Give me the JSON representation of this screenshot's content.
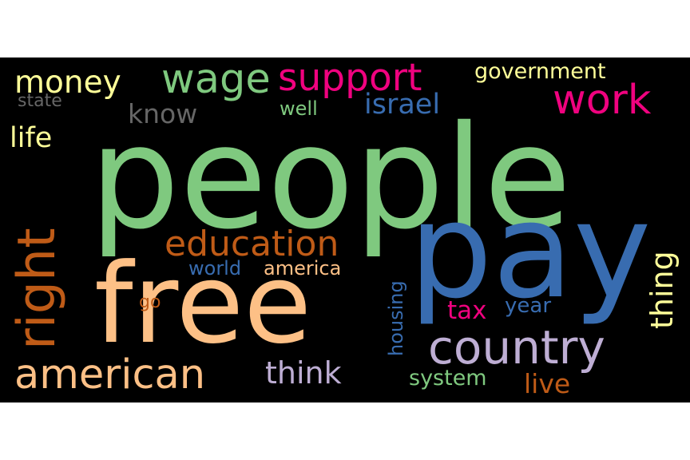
{
  "words": {
    "people": {
      "text": "people",
      "color": "#7fc97f"
    },
    "pay": {
      "text": "pay",
      "color": "#386cb0"
    },
    "free": {
      "text": "free",
      "color": "#fdc086"
    },
    "country": {
      "text": "country",
      "color": "#beaed4"
    },
    "american": {
      "text": "american",
      "color": "#fdc086"
    },
    "right": {
      "text": "right",
      "color": "#bf5b17"
    },
    "education": {
      "text": "education",
      "color": "#bf5b17"
    },
    "wage": {
      "text": "wage",
      "color": "#7fc97f"
    },
    "support": {
      "text": "support",
      "color": "#f0027f"
    },
    "work": {
      "text": "work",
      "color": "#f0027f"
    },
    "money": {
      "text": "money",
      "color": "#ffff99"
    },
    "israel": {
      "text": "israel",
      "color": "#386cb0"
    },
    "know": {
      "text": "know",
      "color": "#666666"
    },
    "life": {
      "text": "life",
      "color": "#ffff99"
    },
    "think": {
      "text": "think",
      "color": "#beaed4"
    },
    "thing": {
      "text": "thing",
      "color": "#ffff99"
    },
    "live": {
      "text": "live",
      "color": "#bf5b17"
    },
    "tax": {
      "text": "tax",
      "color": "#f0027f"
    },
    "government": {
      "text": "government",
      "color": "#ffff99"
    },
    "state": {
      "text": "state",
      "color": "#666666"
    },
    "well": {
      "text": "well",
      "color": "#7fc97f"
    },
    "world": {
      "text": "world",
      "color": "#386cb0"
    },
    "america": {
      "text": "america",
      "color": "#fdc086"
    },
    "year": {
      "text": "year",
      "color": "#386cb0"
    },
    "housing": {
      "text": "housing",
      "color": "#386cb0"
    },
    "system": {
      "text": "system",
      "color": "#7fc97f"
    },
    "go": {
      "text": "go",
      "color": "#bf5b17"
    }
  }
}
